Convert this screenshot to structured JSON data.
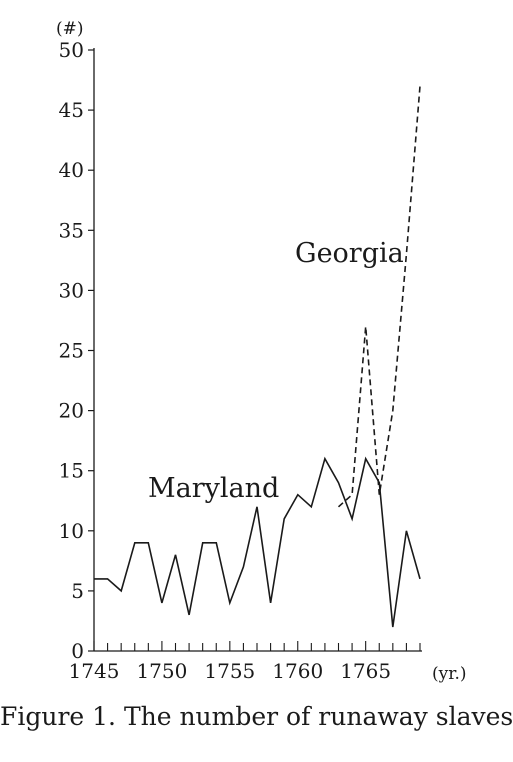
{
  "caption": "Figure 1. The number of runaway slaves",
  "chart_data": {
    "type": "line",
    "title": "Figure 1. The number of runaway slaves",
    "ylabel": "(#)",
    "xlabel": "(yr.)",
    "xlim": [
      1745,
      1769
    ],
    "ylim": [
      0,
      50
    ],
    "x_ticks": [
      1745,
      1750,
      1755,
      1760,
      1765
    ],
    "x_tick_labels": [
      "1745",
      "1750",
      "1755",
      "1760",
      "1765"
    ],
    "y_ticks": [
      0,
      5,
      10,
      15,
      20,
      25,
      30,
      35,
      40,
      45,
      50
    ],
    "y_tick_labels": [
      "0",
      "5",
      "10",
      "15",
      "20",
      "25",
      "30",
      "35",
      "40",
      "45",
      "50"
    ],
    "grid": false,
    "series": [
      {
        "name": "Maryland",
        "style": "solid",
        "color": "#1a1a1a",
        "x": [
          1745,
          1746,
          1747,
          1748,
          1749,
          1750,
          1751,
          1752,
          1753,
          1754,
          1755,
          1756,
          1757,
          1758,
          1759,
          1760,
          1761,
          1762,
          1763,
          1764,
          1765,
          1766,
          1767,
          1768,
          1769
        ],
        "y": [
          6,
          6,
          5,
          9,
          9,
          4,
          8,
          3,
          9,
          9,
          4,
          7,
          12,
          4,
          11,
          13,
          12,
          16,
          14,
          11,
          16,
          14,
          2,
          10,
          6
        ]
      },
      {
        "name": "Georgia",
        "style": "dashed",
        "color": "#1a1a1a",
        "x": [
          1763,
          1764,
          1765,
          1766,
          1767,
          1768,
          1769
        ],
        "y": [
          12,
          13,
          27,
          13,
          20,
          33,
          47
        ]
      }
    ]
  }
}
